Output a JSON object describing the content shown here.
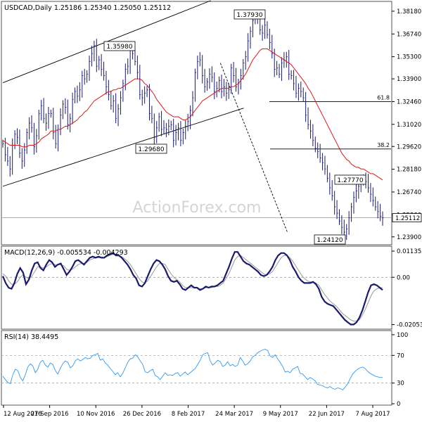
{
  "chart_data": [
    {
      "type": "candlestick",
      "title": "USDCAD,Daily  1.25186 1.25340 1.25050 1.25112",
      "watermark": "ActionForex.com",
      "colors": {
        "price": "#1a1a6e",
        "ma": "#d91a1a",
        "channel": "#000000",
        "grid": "#aaaaaa"
      },
      "y_ticks": [
        "1.38180",
        "1.36740",
        "1.35300",
        "1.33900",
        "1.32460",
        "1.31020",
        "1.29620",
        "1.28180",
        "1.26740",
        "1.25300",
        "1.23900"
      ],
      "current_price": "1.25112",
      "swing_labels": [
        "1.37930",
        "1.35980",
        "1.29680",
        "1.27770",
        "1.24120"
      ],
      "fib_levels": [
        {
          "label": "61.8",
          "price": 1.3246
        },
        {
          "label": "38.2",
          "price": 1.2946
        }
      ],
      "series": [
        {
          "name": "USDCAD",
          "close": [
            1.298,
            1.291,
            1.287,
            1.282,
            1.297,
            1.304,
            1.302,
            1.292,
            1.287,
            1.294,
            1.305,
            1.311,
            1.308,
            1.296,
            1.303,
            1.317,
            1.322,
            1.314,
            1.311,
            1.317,
            1.317,
            1.305,
            1.298,
            1.307,
            1.316,
            1.323,
            1.321,
            1.31,
            1.314,
            1.326,
            1.331,
            1.328,
            1.332,
            1.341,
            1.339,
            1.342,
            1.35,
            1.355,
            1.36,
            1.347,
            1.351,
            1.345,
            1.341,
            1.334,
            1.329,
            1.322,
            1.325,
            1.314,
            1.32,
            1.327,
            1.336,
            1.345,
            1.347,
            1.357,
            1.355,
            1.35,
            1.343,
            1.329,
            1.327,
            1.33,
            1.332,
            1.317,
            1.314,
            1.302,
            1.308,
            1.315,
            1.307,
            1.308,
            1.307,
            1.309,
            1.31,
            1.3,
            1.305,
            1.308,
            1.3,
            1.305,
            1.309,
            1.312,
            1.319,
            1.327,
            1.343,
            1.35,
            1.351,
            1.341,
            1.334,
            1.337,
            1.342,
            1.34,
            1.331,
            1.333,
            1.338,
            1.331,
            1.334,
            1.33,
            1.332,
            1.346,
            1.341,
            1.334,
            1.336,
            1.341,
            1.349,
            1.353,
            1.363,
            1.369,
            1.376,
            1.379,
            1.378,
            1.37,
            1.368,
            1.373,
            1.367,
            1.362,
            1.355,
            1.345,
            1.346,
            1.342,
            1.349,
            1.351,
            1.353,
            1.342,
            1.341,
            1.336,
            1.33,
            1.333,
            1.331,
            1.327,
            1.316,
            1.31,
            1.306,
            1.3,
            1.295,
            1.293,
            1.289,
            1.286,
            1.282,
            1.276,
            1.27,
            1.265,
            1.258,
            1.254,
            1.249,
            1.245,
            1.242,
            1.244,
            1.251,
            1.258,
            1.264,
            1.268,
            1.271,
            1.274,
            1.276,
            1.274,
            1.27,
            1.266,
            1.262,
            1.258,
            1.255,
            1.252,
            1.251
          ],
          "ma": [
            1.3,
            1.299,
            1.298,
            1.297,
            1.297,
            1.297,
            1.297,
            1.297,
            1.296,
            1.296,
            1.296,
            1.297,
            1.297,
            1.297,
            1.298,
            1.299,
            1.301,
            1.302,
            1.303,
            1.304,
            1.306,
            1.306,
            1.306,
            1.307,
            1.307,
            1.308,
            1.309,
            1.309,
            1.31,
            1.311,
            1.312,
            1.313,
            1.315,
            1.316,
            1.318,
            1.319,
            1.321,
            1.323,
            1.325,
            1.326,
            1.327,
            1.328,
            1.329,
            1.33,
            1.331,
            1.331,
            1.332,
            1.332,
            1.333,
            1.333,
            1.334,
            1.335,
            1.336,
            1.337,
            1.338,
            1.339,
            1.339,
            1.339,
            1.338,
            1.336,
            1.335,
            1.333,
            1.331,
            1.329,
            1.326,
            1.324,
            1.322,
            1.32,
            1.318,
            1.317,
            1.316,
            1.315,
            1.315,
            1.315,
            1.314,
            1.313,
            1.313,
            1.314,
            1.315,
            1.317,
            1.319,
            1.321,
            1.323,
            1.325,
            1.326,
            1.327,
            1.328,
            1.329,
            1.33,
            1.331,
            1.332,
            1.333,
            1.333,
            1.333,
            1.333,
            1.334,
            1.334,
            1.335,
            1.336,
            1.338,
            1.34,
            1.342,
            1.345,
            1.348,
            1.351,
            1.353,
            1.355,
            1.357,
            1.358,
            1.358,
            1.358,
            1.357,
            1.356,
            1.355,
            1.354,
            1.353,
            1.352,
            1.351,
            1.35,
            1.349,
            1.348,
            1.346,
            1.344,
            1.342,
            1.34,
            1.338,
            1.336,
            1.333,
            1.331,
            1.328,
            1.325,
            1.322,
            1.319,
            1.316,
            1.313,
            1.31,
            1.307,
            1.304,
            1.301,
            1.298,
            1.295,
            1.292,
            1.29,
            1.288,
            1.287,
            1.285,
            1.284,
            1.283,
            1.283,
            1.282,
            1.282,
            1.281,
            1.28,
            1.279,
            1.279,
            1.278,
            1.277,
            1.276,
            1.275
          ]
        }
      ],
      "x_labels": [
        "12 Aug 2016",
        "27 Sep 2016",
        "10 Nov 2016",
        "26 Dec 2016",
        "8 Feb 2017",
        "24 Mar 2017",
        "9 May 2017",
        "22 Jun 2017",
        "7 Aug 2017"
      ]
    },
    {
      "type": "line",
      "title": "MACD(12,26,9) -0.005534 -0.004293",
      "y_ticks": [
        "0.011355",
        "0.00",
        "-0.020531"
      ],
      "series": [
        {
          "name": "MACD",
          "values": [
            0.0005,
            -0.0025,
            -0.0045,
            -0.005,
            -0.0025,
            0.0015,
            0.004,
            0.002,
            -0.003,
            -0.001,
            0.003,
            0.006,
            0.0065,
            0.004,
            0.003,
            0.0055,
            0.0075,
            0.0065,
            0.0045,
            0.0055,
            0.006,
            0.0035,
            0.001,
            0.0025,
            0.0045,
            0.007,
            0.0075,
            0.0065,
            0.0055,
            0.007,
            0.0085,
            0.009,
            0.0085,
            0.009,
            0.0085,
            0.0085,
            0.0095,
            0.01,
            0.0105,
            0.0095,
            0.0095,
            0.0085,
            0.007,
            0.0055,
            0.0035,
            0.001,
            -0.0005,
            -0.0035,
            -0.004,
            -0.0025,
            0.0005,
            0.0035,
            0.006,
            0.0075,
            0.007,
            0.0055,
            0.0035,
            0.0005,
            -0.0015,
            -0.002,
            -0.0015,
            -0.003,
            -0.005,
            -0.0055,
            -0.0045,
            -0.0035,
            -0.0045,
            -0.0045,
            -0.0055,
            -0.005,
            -0.004,
            -0.0045,
            -0.004,
            -0.004,
            -0.0035,
            -0.0025,
            -0.0015,
            0.0015,
            0.0045,
            0.008,
            0.011,
            0.011,
            0.009,
            0.007,
            0.006,
            0.0055,
            0.0045,
            0.0035,
            0.0025,
            0.001,
            0.0005,
            0.001,
            0.0025,
            0.0045,
            0.0075,
            0.0095,
            0.0105,
            0.0105,
            0.0095,
            0.0075,
            0.0045,
            0.0025,
            0.0,
            -0.0015,
            -0.0025,
            -0.0025,
            -0.0025,
            -0.002,
            -0.003,
            -0.005,
            -0.0085,
            -0.0105,
            -0.0115,
            -0.012,
            -0.0125,
            -0.014,
            -0.0155,
            -0.017,
            -0.0185,
            -0.0195,
            -0.0205,
            -0.0205,
            -0.0195,
            -0.0175,
            -0.0145,
            -0.0105,
            -0.0065,
            -0.0035,
            -0.003,
            -0.0035,
            -0.0045,
            -0.0055
          ]
        },
        {
          "name": "signal",
          "values": [
            0.0015,
            0.0005,
            -0.0015,
            -0.003,
            -0.003,
            -0.002,
            0.0,
            0.001,
            0.0,
            -0.0005,
            0.0005,
            0.0025,
            0.0045,
            0.0045,
            0.004,
            0.0045,
            0.0055,
            0.006,
            0.0055,
            0.0055,
            0.0055,
            0.005,
            0.0035,
            0.003,
            0.0035,
            0.0045,
            0.0055,
            0.006,
            0.006,
            0.0065,
            0.0075,
            0.008,
            0.0085,
            0.0085,
            0.0085,
            0.0085,
            0.009,
            0.0095,
            0.01,
            0.01,
            0.0095,
            0.009,
            0.008,
            0.007,
            0.0055,
            0.0035,
            0.0015,
            -0.0005,
            -0.002,
            -0.0025,
            -0.0015,
            0.0005,
            0.0025,
            0.0045,
            0.006,
            0.006,
            0.0055,
            0.0035,
            0.0015,
            0.0,
            -0.001,
            -0.002,
            -0.0035,
            -0.0045,
            -0.0045,
            -0.0045,
            -0.0045,
            -0.0045,
            -0.005,
            -0.005,
            -0.0045,
            -0.0045,
            -0.0045,
            -0.004,
            -0.004,
            -0.0035,
            -0.0025,
            -0.0005,
            0.0015,
            0.0045,
            0.0075,
            0.009,
            0.0095,
            0.0085,
            0.0075,
            0.0065,
            0.0055,
            0.0045,
            0.0035,
            0.0025,
            0.0015,
            0.001,
            0.0015,
            0.0025,
            0.0045,
            0.0065,
            0.0085,
            0.0095,
            0.0095,
            0.0085,
            0.007,
            0.005,
            0.003,
            0.001,
            -0.0005,
            -0.0015,
            -0.002,
            -0.002,
            -0.0025,
            -0.0035,
            -0.0055,
            -0.0075,
            -0.009,
            -0.0105,
            -0.0115,
            -0.0125,
            -0.014,
            -0.0155,
            -0.0165,
            -0.0175,
            -0.0185,
            -0.019,
            -0.019,
            -0.0185,
            -0.0165,
            -0.014,
            -0.011,
            -0.008,
            -0.006,
            -0.005,
            -0.0045,
            -0.0045
          ]
        }
      ]
    },
    {
      "type": "line",
      "title": "RSI(14) 38.4495",
      "y_ticks": [
        "100",
        "70",
        "30",
        "0"
      ],
      "series": [
        {
          "name": "RSI",
          "values": [
            40,
            35,
            31,
            29,
            42,
            50,
            48,
            38,
            33,
            42,
            53,
            58,
            55,
            45,
            50,
            60,
            63,
            56,
            53,
            59,
            57,
            48,
            43,
            51,
            58,
            62,
            60,
            52,
            55,
            62,
            65,
            62,
            64,
            67,
            65,
            66,
            70,
            71,
            73,
            63,
            65,
            59,
            56,
            51,
            47,
            42,
            45,
            39,
            44,
            52,
            60,
            65,
            66,
            71,
            68,
            62,
            57,
            46,
            45,
            48,
            50,
            41,
            39,
            35,
            40,
            45,
            41,
            42,
            41,
            44,
            45,
            40,
            43,
            46,
            42,
            45,
            48,
            51,
            57,
            63,
            71,
            73,
            74,
            62,
            56,
            59,
            63,
            61,
            54,
            56,
            61,
            55,
            57,
            54,
            56,
            67,
            62,
            56,
            58,
            62,
            68,
            70,
            74,
            76,
            78,
            79,
            77,
            69,
            67,
            71,
            65,
            60,
            54,
            46,
            47,
            45,
            50,
            52,
            54,
            44,
            43,
            39,
            35,
            38,
            36,
            33,
            28,
            27,
            26,
            24,
            23,
            25,
            22,
            21,
            23,
            22,
            20,
            24,
            29,
            36,
            43,
            47,
            50,
            52,
            53,
            51,
            47,
            44,
            42,
            40,
            39,
            38,
            38
          ]
        }
      ]
    }
  ]
}
